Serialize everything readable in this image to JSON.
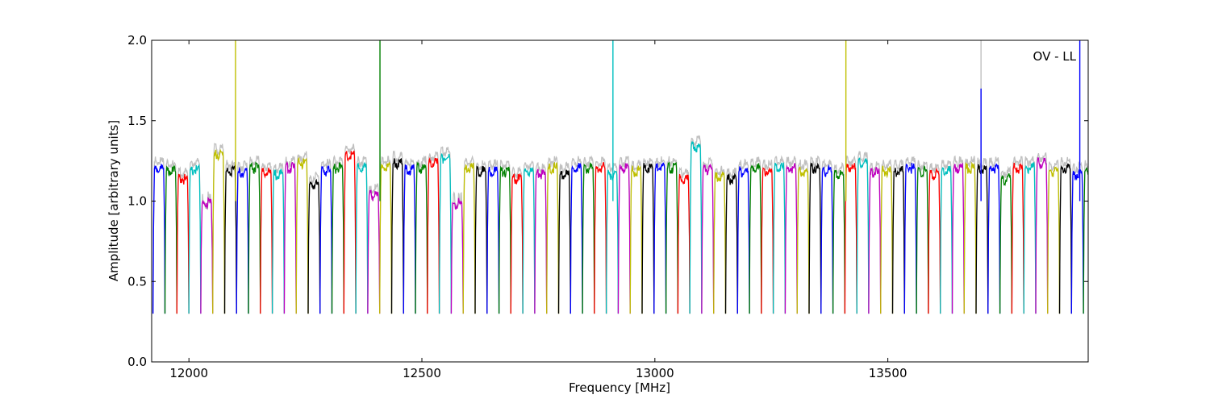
{
  "chart_data": {
    "type": "line",
    "title": "",
    "xlabel": "Frequency [MHz]",
    "ylabel": "Amplitude [arbitrary units]",
    "annotation": "OV - LL",
    "xlim": [
      11920,
      13930
    ],
    "ylim": [
      0.0,
      2.0
    ],
    "xticks": [
      {
        "value": 12000,
        "label": "12000"
      },
      {
        "value": 12500,
        "label": "12500"
      },
      {
        "value": 13000,
        "label": "13000"
      },
      {
        "value": 13500,
        "label": "13500"
      }
    ],
    "yticks": [
      {
        "value": 0.0,
        "label": "0.0"
      },
      {
        "value": 0.5,
        "label": "0.5"
      },
      {
        "value": 1.0,
        "label": "1.0"
      },
      {
        "value": 1.5,
        "label": "1.5"
      },
      {
        "value": 2.0,
        "label": "2.0"
      }
    ],
    "grid": false,
    "legend": "none",
    "color_cycle": [
      "#0000ff",
      "#008000",
      "#ff0000",
      "#00bfbf",
      "#bf00bf",
      "#bfbf00",
      "#000000"
    ],
    "background_series_color": "#c0c0c0",
    "channel_start": 11923,
    "channel_width": 25.6,
    "channel_count": 79,
    "channel_plateau_levels": [
      1.22,
      1.2,
      1.15,
      1.21,
      1.0,
      1.3,
      1.2,
      1.19,
      1.22,
      1.19,
      1.18,
      1.22,
      1.25,
      1.12,
      1.2,
      1.22,
      1.3,
      1.22,
      1.05,
      1.22,
      1.25,
      1.21,
      1.22,
      1.25,
      1.28,
      1.0,
      1.22,
      1.2,
      1.2,
      1.2,
      1.15,
      1.2,
      1.18,
      1.22,
      1.18,
      1.22,
      1.22,
      1.22,
      1.18,
      1.22,
      1.2,
      1.22,
      1.22,
      1.22,
      1.15,
      1.35,
      1.21,
      1.16,
      1.15,
      1.2,
      1.22,
      1.2,
      1.22,
      1.22,
      1.2,
      1.22,
      1.2,
      1.18,
      1.22,
      1.25,
      1.19,
      1.2,
      1.2,
      1.22,
      1.2,
      1.18,
      1.2,
      1.22,
      1.22,
      1.21,
      1.22,
      1.15,
      1.22,
      1.22,
      1.25,
      1.2,
      1.22,
      1.18,
      1.2
    ],
    "channel_trough_level": 0.3,
    "spikes": [
      {
        "x": 12100,
        "y": 2.0,
        "color": "#bfbf00"
      },
      {
        "x": 12410,
        "y": 2.0,
        "color": "#008000"
      },
      {
        "x": 12910,
        "y": 2.0,
        "color": "#00bfbf"
      },
      {
        "x": 13410,
        "y": 2.0,
        "color": "#bfbf00"
      },
      {
        "x": 13700,
        "y": 2.0,
        "color": "#c0c0c0"
      },
      {
        "x": 13700,
        "y": 1.7,
        "color": "#0000ff"
      },
      {
        "x": 13912,
        "y": 2.0,
        "color": "#0000ff"
      }
    ]
  }
}
